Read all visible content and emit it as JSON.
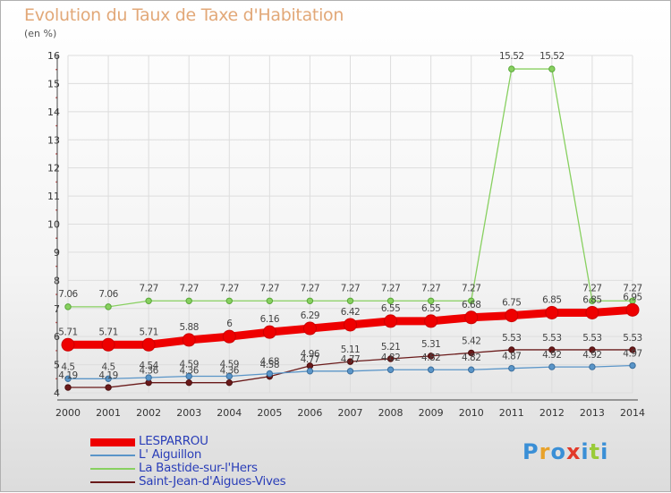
{
  "title": "Evolution du Taux de Taxe d'Habitation",
  "unit": "(en %)",
  "logo": {
    "letters": [
      "P",
      "r",
      "o",
      "x",
      "i",
      "t",
      "i"
    ],
    "colors": [
      "#3a8fd6",
      "#e8a22a",
      "#3a8fd6",
      "#e23a2a",
      "#3a8fd6",
      "#9acb3a",
      "#3a8fd6"
    ]
  },
  "chart_data": {
    "type": "line",
    "x": [
      "2000",
      "2001",
      "2002",
      "2003",
      "2004",
      "2005",
      "2006",
      "2007",
      "2008",
      "2009",
      "2010",
      "2011",
      "2012",
      "2013",
      "2014"
    ],
    "ylim": [
      4,
      16
    ],
    "yticks": [
      "4",
      "5",
      "6",
      "7",
      "8",
      "9",
      "10",
      "11",
      "12",
      "13",
      "14",
      "15",
      "16"
    ],
    "grid": true,
    "legend_position": "bottom-left",
    "series": [
      {
        "name": "LESPARROU",
        "color": "#ee0000",
        "values": [
          5.71,
          5.71,
          5.71,
          5.88,
          6,
          6.16,
          6.29,
          6.42,
          6.55,
          6.55,
          6.68,
          6.75,
          6.85,
          6.85,
          6.95
        ],
        "labels": [
          "5.71",
          "5.71",
          "5.71",
          "5.88",
          "6",
          "6.16",
          "6.29",
          "6.42",
          "6.55",
          "6.55",
          "6.68",
          "6.75",
          "6.85",
          "6.85",
          "6.95"
        ]
      },
      {
        "name": "L' Aiguillon",
        "color": "#5a95c8",
        "values": [
          4.5,
          4.5,
          4.54,
          4.59,
          4.59,
          4.68,
          4.77,
          4.77,
          4.82,
          4.82,
          4.82,
          4.87,
          4.92,
          4.92,
          4.97
        ],
        "labels": [
          "4.5",
          "4.5",
          "4.54",
          "4.59",
          "4.59",
          "4.68",
          "4.77",
          "4.77",
          "4.82",
          "4.82",
          "4.82",
          "4.87",
          "4.92",
          "4.92",
          "4.97"
        ]
      },
      {
        "name": "La Bastide-sur-l'Hers",
        "color": "#88d060",
        "values": [
          7.06,
          7.06,
          7.27,
          7.27,
          7.27,
          7.27,
          7.27,
          7.27,
          7.27,
          7.27,
          7.27,
          15.52,
          15.52,
          7.27,
          7.27
        ],
        "labels": [
          "7.06",
          "7.06",
          "7.27",
          "7.27",
          "7.27",
          "7.27",
          "7.27",
          "7.27",
          "7.27",
          "7.27",
          "7.27",
          "15.52",
          "15.52",
          "7.27",
          "7.27"
        ]
      },
      {
        "name": "Saint-Jean-d'Aigues-Vives",
        "color": "#6a1a1a",
        "values": [
          4.19,
          4.19,
          4.36,
          4.36,
          4.36,
          4.58,
          4.96,
          5.11,
          5.21,
          5.31,
          5.42,
          5.53,
          5.53,
          5.53,
          5.53
        ],
        "labels": [
          "4.19",
          "4.19",
          "4.36",
          "4.36",
          "4.36",
          "4.58",
          "4.96",
          "5.11",
          "5.21",
          "5.31",
          "5.42",
          "5.53",
          "5.53",
          "5.53",
          "5.53"
        ]
      }
    ]
  }
}
